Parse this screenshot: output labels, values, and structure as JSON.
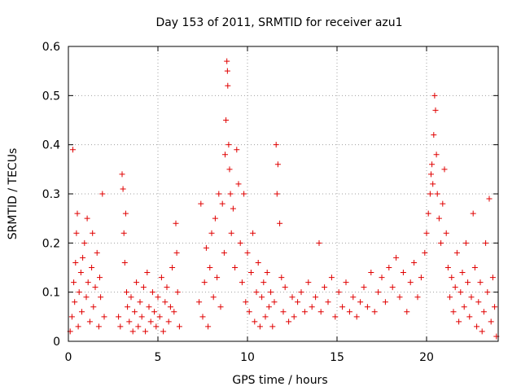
{
  "chart_data": {
    "type": "scatter",
    "title": "Day 153 of 2011, SRMTID for receiver azu1",
    "xlabel": "GPS time / hours",
    "ylabel": "SRMTID / TECUs",
    "xlim": [
      0,
      24
    ],
    "ylim": [
      0,
      0.6
    ],
    "x_ticks": [
      0,
      5,
      10,
      15,
      20
    ],
    "x_tick_labels": [
      "0",
      "5",
      "10",
      "15",
      "20"
    ],
    "y_ticks": [
      0,
      0.1,
      0.2,
      0.3,
      0.4,
      0.5,
      0.6
    ],
    "y_tick_labels": [
      "0",
      "0.1",
      "0.2",
      "0.3",
      "0.4",
      "0.5",
      "0.6"
    ],
    "grid": true,
    "marker": "plus",
    "color": "#e00000",
    "series": [
      {
        "name": "SRMTID",
        "points": [
          [
            0.1,
            0.02
          ],
          [
            0.2,
            0.05
          ],
          [
            0.25,
            0.39
          ],
          [
            0.3,
            0.12
          ],
          [
            0.35,
            0.08
          ],
          [
            0.4,
            0.16
          ],
          [
            0.45,
            0.22
          ],
          [
            0.5,
            0.26
          ],
          [
            0.55,
            0.03
          ],
          [
            0.6,
            0.1
          ],
          [
            0.7,
            0.14
          ],
          [
            0.75,
            0.06
          ],
          [
            0.8,
            0.17
          ],
          [
            0.9,
            0.2
          ],
          [
            1.0,
            0.09
          ],
          [
            1.05,
            0.25
          ],
          [
            1.1,
            0.12
          ],
          [
            1.2,
            0.04
          ],
          [
            1.3,
            0.15
          ],
          [
            1.35,
            0.22
          ],
          [
            1.4,
            0.07
          ],
          [
            1.5,
            0.11
          ],
          [
            1.6,
            0.18
          ],
          [
            1.7,
            0.03
          ],
          [
            1.75,
            0.13
          ],
          [
            1.8,
            0.09
          ],
          [
            1.9,
            0.3
          ],
          [
            2.0,
            0.05
          ],
          [
            2.8,
            0.05
          ],
          [
            2.9,
            0.03
          ],
          [
            3.0,
            0.34
          ],
          [
            3.05,
            0.31
          ],
          [
            3.1,
            0.22
          ],
          [
            3.15,
            0.16
          ],
          [
            3.2,
            0.26
          ],
          [
            3.25,
            0.1
          ],
          [
            3.3,
            0.07
          ],
          [
            3.4,
            0.04
          ],
          [
            3.5,
            0.09
          ],
          [
            3.6,
            0.02
          ],
          [
            3.7,
            0.06
          ],
          [
            3.8,
            0.12
          ],
          [
            3.9,
            0.03
          ],
          [
            4.0,
            0.08
          ],
          [
            4.1,
            0.05
          ],
          [
            4.2,
            0.11
          ],
          [
            4.3,
            0.02
          ],
          [
            4.4,
            0.14
          ],
          [
            4.5,
            0.07
          ],
          [
            4.6,
            0.04
          ],
          [
            4.7,
            0.1
          ],
          [
            4.8,
            0.06
          ],
          [
            4.9,
            0.03
          ],
          [
            5.0,
            0.09
          ],
          [
            5.1,
            0.05
          ],
          [
            5.2,
            0.13
          ],
          [
            5.3,
            0.02
          ],
          [
            5.4,
            0.08
          ],
          [
            5.5,
            0.11
          ],
          [
            5.6,
            0.04
          ],
          [
            5.7,
            0.07
          ],
          [
            5.8,
            0.15
          ],
          [
            5.9,
            0.06
          ],
          [
            6.0,
            0.24
          ],
          [
            6.05,
            0.18
          ],
          [
            6.1,
            0.1
          ],
          [
            6.2,
            0.03
          ],
          [
            7.3,
            0.08
          ],
          [
            7.4,
            0.28
          ],
          [
            7.5,
            0.05
          ],
          [
            7.6,
            0.12
          ],
          [
            7.7,
            0.19
          ],
          [
            7.8,
            0.03
          ],
          [
            7.9,
            0.15
          ],
          [
            8.0,
            0.22
          ],
          [
            8.1,
            0.09
          ],
          [
            8.2,
            0.25
          ],
          [
            8.3,
            0.13
          ],
          [
            8.4,
            0.3
          ],
          [
            8.5,
            0.07
          ],
          [
            8.6,
            0.28
          ],
          [
            8.7,
            0.18
          ],
          [
            8.75,
            0.38
          ],
          [
            8.8,
            0.45
          ],
          [
            8.85,
            0.57
          ],
          [
            8.88,
            0.55
          ],
          [
            8.9,
            0.52
          ],
          [
            8.95,
            0.4
          ],
          [
            9.0,
            0.35
          ],
          [
            9.05,
            0.3
          ],
          [
            9.1,
            0.22
          ],
          [
            9.2,
            0.27
          ],
          [
            9.3,
            0.15
          ],
          [
            9.4,
            0.39
          ],
          [
            9.5,
            0.32
          ],
          [
            9.6,
            0.2
          ],
          [
            9.7,
            0.12
          ],
          [
            9.8,
            0.3
          ],
          [
            9.9,
            0.08
          ],
          [
            10.0,
            0.18
          ],
          [
            10.1,
            0.06
          ],
          [
            10.2,
            0.14
          ],
          [
            10.3,
            0.22
          ],
          [
            10.4,
            0.04
          ],
          [
            10.5,
            0.1
          ],
          [
            10.6,
            0.16
          ],
          [
            10.7,
            0.03
          ],
          [
            10.8,
            0.09
          ],
          [
            10.9,
            0.12
          ],
          [
            11.0,
            0.05
          ],
          [
            11.1,
            0.14
          ],
          [
            11.2,
            0.07
          ],
          [
            11.3,
            0.1
          ],
          [
            11.4,
            0.03
          ],
          [
            11.5,
            0.08
          ],
          [
            11.6,
            0.4
          ],
          [
            11.65,
            0.3
          ],
          [
            11.7,
            0.36
          ],
          [
            11.8,
            0.24
          ],
          [
            11.9,
            0.13
          ],
          [
            12.0,
            0.06
          ],
          [
            12.1,
            0.11
          ],
          [
            12.3,
            0.04
          ],
          [
            12.5,
            0.09
          ],
          [
            12.6,
            0.05
          ],
          [
            12.8,
            0.08
          ],
          [
            13.0,
            0.1
          ],
          [
            13.2,
            0.06
          ],
          [
            13.4,
            0.12
          ],
          [
            13.6,
            0.07
          ],
          [
            13.8,
            0.09
          ],
          [
            14.0,
            0.2
          ],
          [
            14.1,
            0.06
          ],
          [
            14.3,
            0.11
          ],
          [
            14.5,
            0.08
          ],
          [
            14.7,
            0.13
          ],
          [
            14.9,
            0.05
          ],
          [
            15.1,
            0.1
          ],
          [
            15.3,
            0.07
          ],
          [
            15.5,
            0.12
          ],
          [
            15.7,
            0.06
          ],
          [
            15.9,
            0.09
          ],
          [
            16.1,
            0.05
          ],
          [
            16.3,
            0.08
          ],
          [
            16.5,
            0.11
          ],
          [
            16.7,
            0.07
          ],
          [
            16.9,
            0.14
          ],
          [
            17.1,
            0.06
          ],
          [
            17.3,
            0.1
          ],
          [
            17.5,
            0.13
          ],
          [
            17.7,
            0.08
          ],
          [
            17.9,
            0.15
          ],
          [
            18.1,
            0.11
          ],
          [
            18.3,
            0.17
          ],
          [
            18.5,
            0.09
          ],
          [
            18.7,
            0.14
          ],
          [
            18.9,
            0.06
          ],
          [
            19.1,
            0.12
          ],
          [
            19.3,
            0.16
          ],
          [
            19.5,
            0.09
          ],
          [
            19.7,
            0.13
          ],
          [
            19.9,
            0.18
          ],
          [
            20.0,
            0.22
          ],
          [
            20.1,
            0.26
          ],
          [
            20.2,
            0.3
          ],
          [
            20.25,
            0.34
          ],
          [
            20.3,
            0.36
          ],
          [
            20.35,
            0.32
          ],
          [
            20.4,
            0.42
          ],
          [
            20.45,
            0.5
          ],
          [
            20.5,
            0.47
          ],
          [
            20.55,
            0.38
          ],
          [
            20.6,
            0.3
          ],
          [
            20.7,
            0.25
          ],
          [
            20.8,
            0.2
          ],
          [
            20.9,
            0.28
          ],
          [
            21.0,
            0.35
          ],
          [
            21.1,
            0.22
          ],
          [
            21.2,
            0.15
          ],
          [
            21.3,
            0.09
          ],
          [
            21.4,
            0.13
          ],
          [
            21.5,
            0.06
          ],
          [
            21.6,
            0.11
          ],
          [
            21.7,
            0.18
          ],
          [
            21.8,
            0.04
          ],
          [
            21.9,
            0.1
          ],
          [
            22.0,
            0.14
          ],
          [
            22.1,
            0.07
          ],
          [
            22.2,
            0.2
          ],
          [
            22.3,
            0.12
          ],
          [
            22.4,
            0.05
          ],
          [
            22.5,
            0.09
          ],
          [
            22.6,
            0.26
          ],
          [
            22.7,
            0.15
          ],
          [
            22.8,
            0.03
          ],
          [
            22.9,
            0.08
          ],
          [
            23.0,
            0.12
          ],
          [
            23.1,
            0.02
          ],
          [
            23.2,
            0.06
          ],
          [
            23.3,
            0.2
          ],
          [
            23.4,
            0.1
          ],
          [
            23.5,
            0.29
          ],
          [
            23.6,
            0.04
          ],
          [
            23.7,
            0.13
          ],
          [
            23.8,
            0.07
          ],
          [
            23.9,
            0.01
          ]
        ]
      }
    ]
  }
}
